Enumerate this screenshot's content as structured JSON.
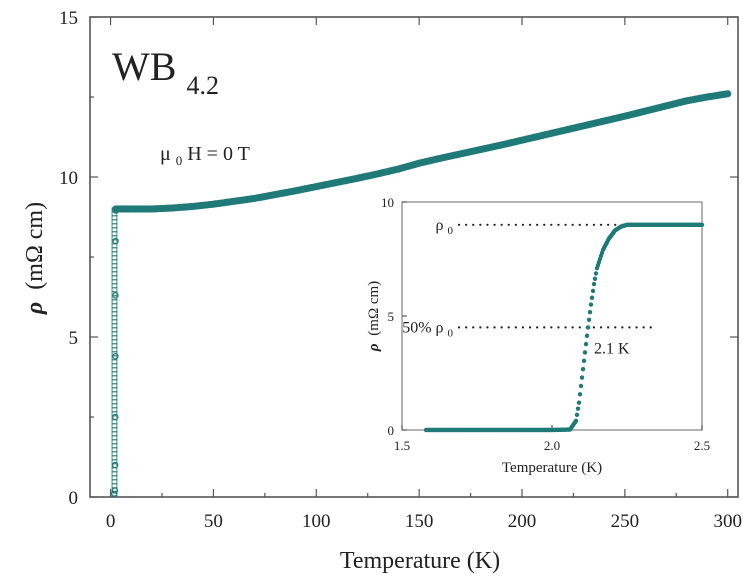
{
  "chart_data": [
    {
      "type": "scatter",
      "xlabel": "Temperature (K)",
      "ylabel_symbol": "ρ",
      "ylabel_unit": "(mΩ cm)",
      "xlim": [
        -10,
        305
      ],
      "ylim": [
        0,
        15
      ],
      "xticks": [
        0,
        50,
        100,
        150,
        200,
        250,
        300
      ],
      "yticks": [
        0,
        5,
        10,
        15
      ],
      "annotations": {
        "compound_base": "WB",
        "compound_sub": "4.2",
        "field_mu": "μ",
        "field_sub": "0",
        "field_rest": "H = 0 T"
      },
      "color": "#1f7a78",
      "series": [
        {
          "values_transition": [
            [
              1.5,
              0.1
            ],
            [
              1.9,
              0.2
            ],
            [
              2.0,
              1.0
            ],
            [
              2.05,
              2.5
            ],
            [
              2.1,
              4.4
            ],
            [
              2.15,
              6.3
            ],
            [
              2.2,
              8.0
            ],
            [
              2.3,
              8.95
            ],
            [
              2.5,
              9.0
            ]
          ],
          "values_normal": [
            [
              2.5,
              9.0
            ],
            [
              5,
              9.0
            ],
            [
              10,
              9.0
            ],
            [
              20,
              9.0
            ],
            [
              30,
              9.03
            ],
            [
              40,
              9.08
            ],
            [
              50,
              9.15
            ],
            [
              60,
              9.24
            ],
            [
              70,
              9.33
            ],
            [
              80,
              9.45
            ],
            [
              90,
              9.57
            ],
            [
              100,
              9.7
            ],
            [
              110,
              9.83
            ],
            [
              120,
              9.96
            ],
            [
              130,
              10.1
            ],
            [
              140,
              10.25
            ],
            [
              150,
              10.43
            ],
            [
              160,
              10.58
            ],
            [
              170,
              10.72
            ],
            [
              180,
              10.86
            ],
            [
              190,
              11.0
            ],
            [
              200,
              11.15
            ],
            [
              210,
              11.3
            ],
            [
              220,
              11.45
            ],
            [
              230,
              11.6
            ],
            [
              240,
              11.75
            ],
            [
              250,
              11.9
            ],
            [
              260,
              12.06
            ],
            [
              270,
              12.22
            ],
            [
              280,
              12.38
            ],
            [
              290,
              12.5
            ],
            [
              300,
              12.6
            ]
          ]
        }
      ]
    },
    {
      "type": "scatter",
      "xlabel": "Temperature (K)",
      "ylabel_symbol": "ρ",
      "ylabel_unit": "(mΩ cm)",
      "xlim": [
        1.5,
        2.5
      ],
      "ylim": [
        0,
        10
      ],
      "xticks": [
        1.5,
        2.0,
        2.5
      ],
      "yticks": [
        0,
        5,
        10
      ],
      "xtick_labels": [
        "1.5",
        "2.0",
        "2.5"
      ],
      "ytick_labels": [
        "0",
        "5",
        "10"
      ],
      "annotations": {
        "rho0": "ρ",
        "rho0_sub": "0",
        "half_prefix": "50% ρ",
        "half_sub": "0",
        "tc": "2.1 K",
        "rho0_level": 9.0,
        "half_level": 4.5
      },
      "color": "#1f7a78",
      "series": [
        {
          "values": [
            [
              1.58,
              0.0
            ],
            [
              1.7,
              0.0
            ],
            [
              1.8,
              0.0
            ],
            [
              1.9,
              0.0
            ],
            [
              2.0,
              0.0
            ],
            [
              2.06,
              0.02
            ],
            [
              2.08,
              0.4
            ],
            [
              2.09,
              1.2
            ],
            [
              2.1,
              2.3
            ],
            [
              2.11,
              3.4
            ],
            [
              2.12,
              4.5
            ],
            [
              2.13,
              5.5
            ],
            [
              2.14,
              6.4
            ],
            [
              2.15,
              7.1
            ],
            [
              2.17,
              7.9
            ],
            [
              2.19,
              8.4
            ],
            [
              2.21,
              8.75
            ],
            [
              2.23,
              8.92
            ],
            [
              2.25,
              9.0
            ],
            [
              2.3,
              9.0
            ],
            [
              2.4,
              9.0
            ],
            [
              2.5,
              9.0
            ]
          ]
        }
      ]
    }
  ]
}
